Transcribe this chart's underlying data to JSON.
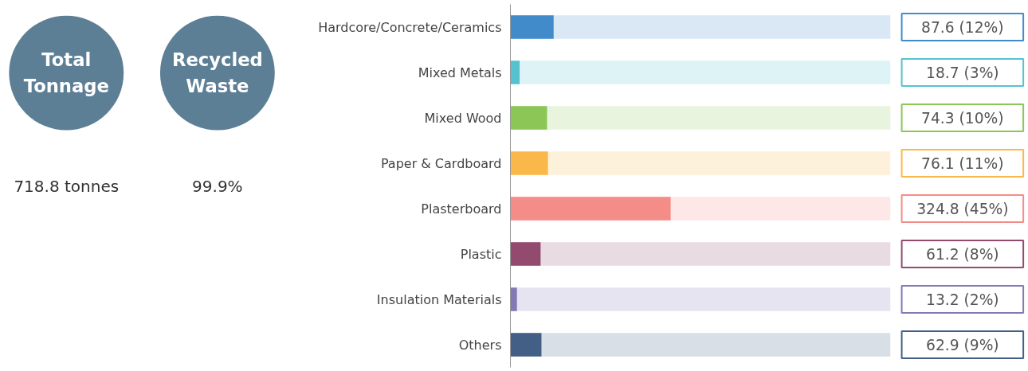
{
  "chart_data": [
    {
      "type": "other",
      "annotations": [
        "Total Tonnage",
        "718.8 tonnes",
        "Recycled Waste",
        "99.9%"
      ]
    },
    {
      "type": "bar",
      "orientation": "horizontal",
      "categories": [
        "Hardcore/Concrete/Ceramics",
        "Mixed Metals",
        "Mixed Wood",
        "Paper & Cardboard",
        "Plasterboard",
        "Plastic",
        "Insulation Materials",
        "Others"
      ],
      "values": [
        87.6,
        18.7,
        74.3,
        76.1,
        324.8,
        61.2,
        13.2,
        62.9
      ],
      "value_labels": [
        "87.6 (12%)",
        "18.7 (3%)",
        "74.3 (10%)",
        "76.1 (11%)",
        "324.8 (45%)",
        "61.2 (8%)",
        "13.2 (2%)",
        "62.9 (9%)"
      ],
      "colors": [
        "#428bca",
        "#56c2cf",
        "#8bc657",
        "#fbb84a",
        "#f48c88",
        "#924b6f",
        "#8379b3",
        "#435f86"
      ],
      "xlim": [
        0,
        770
      ],
      "grid": false
    }
  ]
}
